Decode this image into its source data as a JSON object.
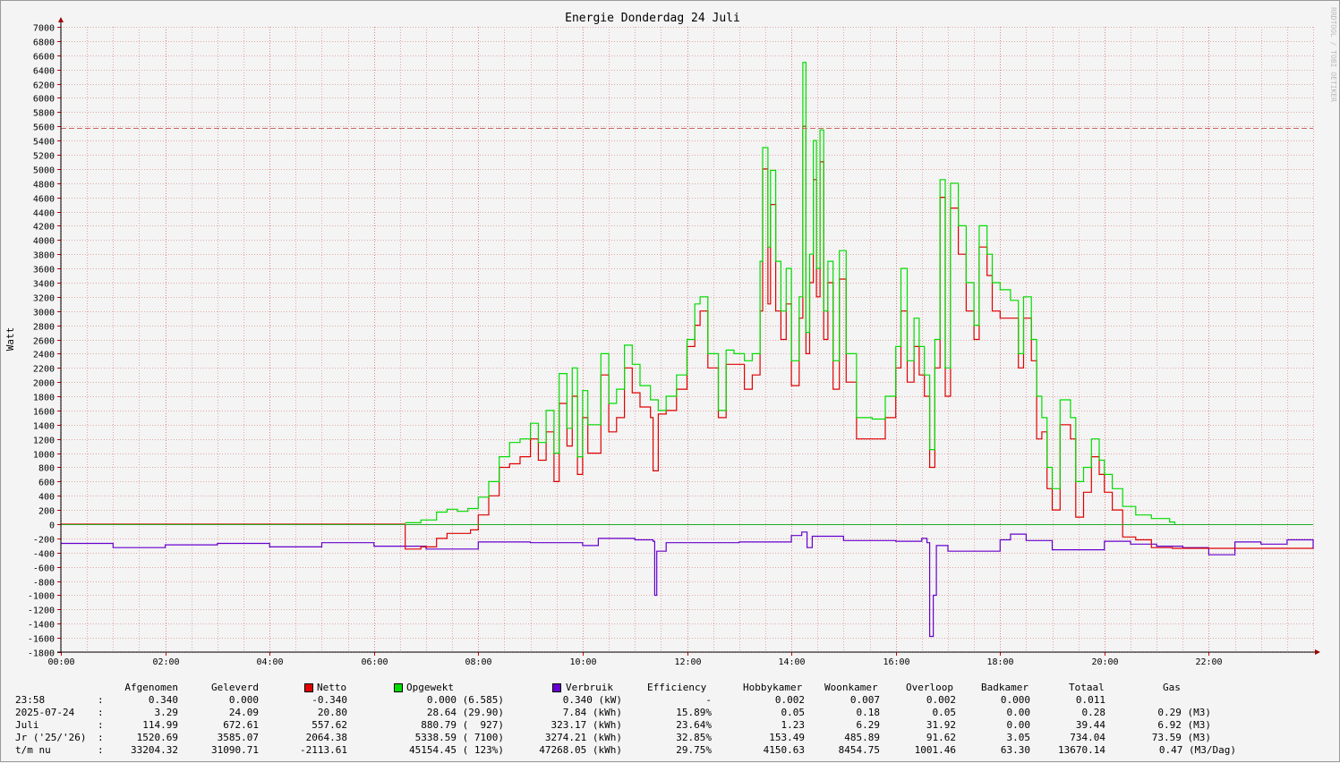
{
  "chart_data": {
    "type": "line",
    "title": "Energie Donderdag 24 Juli",
    "ylabel": "Watt",
    "xlabel": "",
    "side_label": "RRDTOOL / TOBI OETIKER",
    "x_range_hours": [
      0,
      24
    ],
    "ylim": [
      -1800,
      7000
    ],
    "y_ticks": [
      7000,
      6800,
      6600,
      6400,
      6200,
      6000,
      5800,
      5600,
      5400,
      5200,
      5000,
      4800,
      4600,
      4400,
      4200,
      4000,
      3800,
      3600,
      3400,
      3200,
      3000,
      2800,
      2600,
      2400,
      2200,
      2000,
      1800,
      1600,
      1400,
      1200,
      1000,
      800,
      600,
      400,
      200,
      0,
      -200,
      -400,
      -600,
      -800,
      -1000,
      -1200,
      -1400,
      -1600,
      -1800
    ],
    "x_ticks": [
      "00:00",
      "02:00",
      "04:00",
      "06:00",
      "08:00",
      "10:00",
      "12:00",
      "14:00",
      "16:00",
      "18:00",
      "20:00",
      "22:00"
    ],
    "reference_line": 5580,
    "grid": true,
    "colors": {
      "netto": "#e00000",
      "opgewekt": "#00dd00",
      "verbruik": "#6600cc",
      "zero_line": "#22aa22",
      "reference": "#cc6666",
      "grid": "#e3a5a5"
    },
    "series": [
      {
        "name": "Opgewekt",
        "points": [
          [
            6.6,
            20
          ],
          [
            6.9,
            60
          ],
          [
            7.2,
            170
          ],
          [
            7.4,
            210
          ],
          [
            7.6,
            180
          ],
          [
            7.8,
            220
          ],
          [
            8.0,
            380
          ],
          [
            8.2,
            600
          ],
          [
            8.4,
            950
          ],
          [
            8.6,
            1150
          ],
          [
            8.8,
            1200
          ],
          [
            9.0,
            1420
          ],
          [
            9.15,
            1150
          ],
          [
            9.3,
            1600
          ],
          [
            9.45,
            1000
          ],
          [
            9.55,
            2120
          ],
          [
            9.7,
            1350
          ],
          [
            9.8,
            2200
          ],
          [
            9.9,
            950
          ],
          [
            10.0,
            1880
          ],
          [
            10.1,
            1400
          ],
          [
            10.35,
            2400
          ],
          [
            10.5,
            1700
          ],
          [
            10.65,
            1900
          ],
          [
            10.8,
            2520
          ],
          [
            10.95,
            2250
          ],
          [
            11.1,
            1950
          ],
          [
            11.3,
            1750
          ],
          [
            11.45,
            1600
          ],
          [
            11.6,
            1800
          ],
          [
            11.8,
            2100
          ],
          [
            12.0,
            2600
          ],
          [
            12.15,
            3100
          ],
          [
            12.25,
            3200
          ],
          [
            12.4,
            2400
          ],
          [
            12.6,
            1600
          ],
          [
            12.75,
            2450
          ],
          [
            12.9,
            2400
          ],
          [
            13.1,
            2300
          ],
          [
            13.25,
            2400
          ],
          [
            13.4,
            3700
          ],
          [
            13.45,
            5300
          ],
          [
            13.55,
            3900
          ],
          [
            13.6,
            4980
          ],
          [
            13.7,
            3700
          ],
          [
            13.8,
            3000
          ],
          [
            13.9,
            3600
          ],
          [
            14.0,
            2300
          ],
          [
            14.15,
            3200
          ],
          [
            14.22,
            6500
          ],
          [
            14.28,
            2700
          ],
          [
            14.35,
            3800
          ],
          [
            14.42,
            5400
          ],
          [
            14.48,
            3600
          ],
          [
            14.55,
            5550
          ],
          [
            14.62,
            3000
          ],
          [
            14.7,
            3700
          ],
          [
            14.8,
            2300
          ],
          [
            14.92,
            3850
          ],
          [
            15.05,
            2400
          ],
          [
            15.25,
            1500
          ],
          [
            15.55,
            1480
          ],
          [
            15.8,
            1800
          ],
          [
            16.0,
            2500
          ],
          [
            16.1,
            3600
          ],
          [
            16.22,
            2300
          ],
          [
            16.35,
            2900
          ],
          [
            16.45,
            2500
          ],
          [
            16.55,
            2100
          ],
          [
            16.65,
            1050
          ],
          [
            16.75,
            2600
          ],
          [
            16.85,
            4850
          ],
          [
            16.95,
            2200
          ],
          [
            17.05,
            4800
          ],
          [
            17.2,
            4200
          ],
          [
            17.35,
            3400
          ],
          [
            17.5,
            2800
          ],
          [
            17.6,
            4200
          ],
          [
            17.75,
            3800
          ],
          [
            17.85,
            3400
          ],
          [
            18.0,
            3300
          ],
          [
            18.2,
            3150
          ],
          [
            18.35,
            2400
          ],
          [
            18.45,
            3200
          ],
          [
            18.6,
            2600
          ],
          [
            18.7,
            1800
          ],
          [
            18.8,
            1500
          ],
          [
            18.9,
            800
          ],
          [
            19.0,
            500
          ],
          [
            19.15,
            1750
          ],
          [
            19.35,
            1500
          ],
          [
            19.45,
            600
          ],
          [
            19.6,
            800
          ],
          [
            19.75,
            1200
          ],
          [
            19.9,
            900
          ],
          [
            20.0,
            700
          ],
          [
            20.15,
            500
          ],
          [
            20.35,
            250
          ],
          [
            20.6,
            130
          ],
          [
            20.9,
            80
          ],
          [
            21.25,
            30
          ],
          [
            21.35,
            0
          ]
        ]
      },
      {
        "name": "Netto",
        "points": [
          [
            0,
            0
          ],
          [
            6.6,
            -350
          ],
          [
            6.9,
            -320
          ],
          [
            7.2,
            -200
          ],
          [
            7.4,
            -130
          ],
          [
            7.6,
            -130
          ],
          [
            7.85,
            -80
          ],
          [
            8.0,
            130
          ],
          [
            8.2,
            400
          ],
          [
            8.4,
            800
          ],
          [
            8.6,
            850
          ],
          [
            8.8,
            950
          ],
          [
            9.0,
            1200
          ],
          [
            9.15,
            900
          ],
          [
            9.3,
            1300
          ],
          [
            9.45,
            600
          ],
          [
            9.55,
            1700
          ],
          [
            9.7,
            1100
          ],
          [
            9.8,
            1800
          ],
          [
            9.9,
            700
          ],
          [
            10.0,
            1500
          ],
          [
            10.1,
            1000
          ],
          [
            10.35,
            2100
          ],
          [
            10.5,
            1300
          ],
          [
            10.65,
            1500
          ],
          [
            10.8,
            2200
          ],
          [
            10.95,
            1850
          ],
          [
            11.1,
            1650
          ],
          [
            11.3,
            1500
          ],
          [
            11.35,
            750
          ],
          [
            11.45,
            1550
          ],
          [
            11.6,
            1600
          ],
          [
            11.8,
            1900
          ],
          [
            12.0,
            2500
          ],
          [
            12.15,
            2800
          ],
          [
            12.25,
            3000
          ],
          [
            12.4,
            2200
          ],
          [
            12.6,
            1500
          ],
          [
            12.75,
            2250
          ],
          [
            12.9,
            2250
          ],
          [
            13.1,
            1900
          ],
          [
            13.25,
            2100
          ],
          [
            13.4,
            3000
          ],
          [
            13.45,
            5000
          ],
          [
            13.55,
            3100
          ],
          [
            13.6,
            4500
          ],
          [
            13.7,
            3000
          ],
          [
            13.8,
            2600
          ],
          [
            13.9,
            3100
          ],
          [
            14.0,
            1950
          ],
          [
            14.15,
            2900
          ],
          [
            14.22,
            5600
          ],
          [
            14.28,
            2400
          ],
          [
            14.35,
            3400
          ],
          [
            14.42,
            4850
          ],
          [
            14.48,
            3200
          ],
          [
            14.55,
            5100
          ],
          [
            14.62,
            2600
          ],
          [
            14.7,
            3400
          ],
          [
            14.8,
            1900
          ],
          [
            14.92,
            3450
          ],
          [
            15.05,
            2000
          ],
          [
            15.25,
            1200
          ],
          [
            15.55,
            1200
          ],
          [
            15.8,
            1500
          ],
          [
            16.0,
            2200
          ],
          [
            16.1,
            3000
          ],
          [
            16.22,
            2000
          ],
          [
            16.35,
            2500
          ],
          [
            16.45,
            2100
          ],
          [
            16.55,
            1800
          ],
          [
            16.65,
            800
          ],
          [
            16.75,
            2200
          ],
          [
            16.85,
            4600
          ],
          [
            16.95,
            1800
          ],
          [
            17.05,
            4450
          ],
          [
            17.2,
            3800
          ],
          [
            17.35,
            3000
          ],
          [
            17.5,
            2600
          ],
          [
            17.6,
            3900
          ],
          [
            17.75,
            3500
          ],
          [
            17.85,
            3000
          ],
          [
            18.0,
            2900
          ],
          [
            18.2,
            2900
          ],
          [
            18.35,
            2200
          ],
          [
            18.45,
            2900
          ],
          [
            18.6,
            2300
          ],
          [
            18.7,
            1200
          ],
          [
            18.8,
            1300
          ],
          [
            18.9,
            500
          ],
          [
            19.0,
            200
          ],
          [
            19.15,
            1400
          ],
          [
            19.35,
            1200
          ],
          [
            19.45,
            100
          ],
          [
            19.6,
            450
          ],
          [
            19.75,
            950
          ],
          [
            19.9,
            700
          ],
          [
            20.0,
            450
          ],
          [
            20.15,
            200
          ],
          [
            20.35,
            -180
          ],
          [
            20.6,
            -220
          ],
          [
            20.9,
            -330
          ],
          [
            21.3,
            -340
          ],
          [
            24,
            -340
          ]
        ]
      },
      {
        "name": "Verbruik",
        "points": [
          [
            0,
            -270
          ],
          [
            1,
            -330
          ],
          [
            2,
            -290
          ],
          [
            3,
            -270
          ],
          [
            4,
            -320
          ],
          [
            5,
            -260
          ],
          [
            6,
            -310
          ],
          [
            7,
            -350
          ],
          [
            8,
            -250
          ],
          [
            9,
            -260
          ],
          [
            10,
            -300
          ],
          [
            10.3,
            -200
          ],
          [
            11,
            -220
          ],
          [
            11.35,
            -240
          ],
          [
            11.38,
            -1000
          ],
          [
            11.42,
            -380
          ],
          [
            11.6,
            -260
          ],
          [
            12,
            -260
          ],
          [
            13,
            -250
          ],
          [
            14,
            -160
          ],
          [
            14.2,
            -110
          ],
          [
            14.3,
            -330
          ],
          [
            14.4,
            -170
          ],
          [
            15,
            -230
          ],
          [
            16,
            -240
          ],
          [
            16.5,
            -200
          ],
          [
            16.6,
            -260
          ],
          [
            16.65,
            -1580
          ],
          [
            16.72,
            -1000
          ],
          [
            16.78,
            -300
          ],
          [
            17,
            -380
          ],
          [
            18,
            -220
          ],
          [
            18.2,
            -140
          ],
          [
            18.5,
            -230
          ],
          [
            19,
            -360
          ],
          [
            20,
            -240
          ],
          [
            20.5,
            -280
          ],
          [
            21,
            -310
          ],
          [
            21.5,
            -330
          ],
          [
            22,
            -430
          ],
          [
            22.5,
            -250
          ],
          [
            23,
            -280
          ],
          [
            23.5,
            -220
          ],
          [
            24,
            -350
          ]
        ]
      }
    ]
  },
  "table": {
    "headers": {
      "afgenomen": "Afgenomen",
      "geleverd": "Geleverd",
      "netto": "Netto",
      "opgewekt": "Opgewekt",
      "verbruik": "Verbruik",
      "efficiency": "Efficiency",
      "hobbykamer": "Hobbykamer",
      "woonkamer": "Woonkamer",
      "overloop": "Overloop",
      "badkamer": "Badkamer",
      "totaal": "Totaal",
      "gas": "Gas"
    },
    "rows": [
      {
        "label": "23:58",
        "sep": ":",
        "afgenomen": "0.340",
        "geleverd": "0.000",
        "netto": "-0.340",
        "opgewekt": "0.000 (6.585)",
        "verbruik": "0.340 (kW)",
        "efficiency": "-",
        "hobbykamer": "0.002",
        "woonkamer": "0.007",
        "overloop": "0.002",
        "badkamer": "0.000",
        "totaal": "0.011",
        "gas": ""
      },
      {
        "label": "2025-07-24",
        "sep": ":",
        "afgenomen": "3.29",
        "geleverd": "24.09",
        "netto": "20.80",
        "opgewekt": "28.64 (29.90)",
        "verbruik": "7.84 (kWh)",
        "efficiency": "15.89%",
        "hobbykamer": "0.05",
        "woonkamer": "0.18",
        "overloop": "0.05",
        "badkamer": "0.00",
        "totaal": "0.28",
        "gas": "0.29 (M3)"
      },
      {
        "label": "Juli",
        "sep": ":",
        "afgenomen": "114.99",
        "geleverd": "672.61",
        "netto": "557.62",
        "opgewekt": "880.79 (  927)",
        "verbruik": "323.17 (kWh)",
        "efficiency": "23.64%",
        "hobbykamer": "1.23",
        "woonkamer": "6.29",
        "overloop": "31.92",
        "badkamer": "0.00",
        "totaal": "39.44",
        "gas": "6.92 (M3)"
      },
      {
        "label": "Jr ('25/'26)",
        "sep": ":",
        "afgenomen": "1520.69",
        "geleverd": "3585.07",
        "netto": "2064.38",
        "opgewekt": "5338.59 ( 7100)",
        "verbruik": "3274.21 (kWh)",
        "efficiency": "32.85%",
        "hobbykamer": "153.49",
        "woonkamer": "485.89",
        "overloop": "91.62",
        "badkamer": "3.05",
        "totaal": "734.04",
        "gas": "73.59 (M3)"
      },
      {
        "label": "t/m nu",
        "sep": ":",
        "afgenomen": "33204.32",
        "geleverd": "31090.71",
        "netto": "-2113.61",
        "opgewekt": "45154.45 ( 123%)",
        "verbruik": "47268.05 (kWh)",
        "efficiency": "29.75%",
        "hobbykamer": "4150.63",
        "woonkamer": "8454.75",
        "overloop": "1001.46",
        "badkamer": "63.30",
        "totaal": "13670.14",
        "gas": "0.47 (M3/Dag)"
      }
    ]
  }
}
